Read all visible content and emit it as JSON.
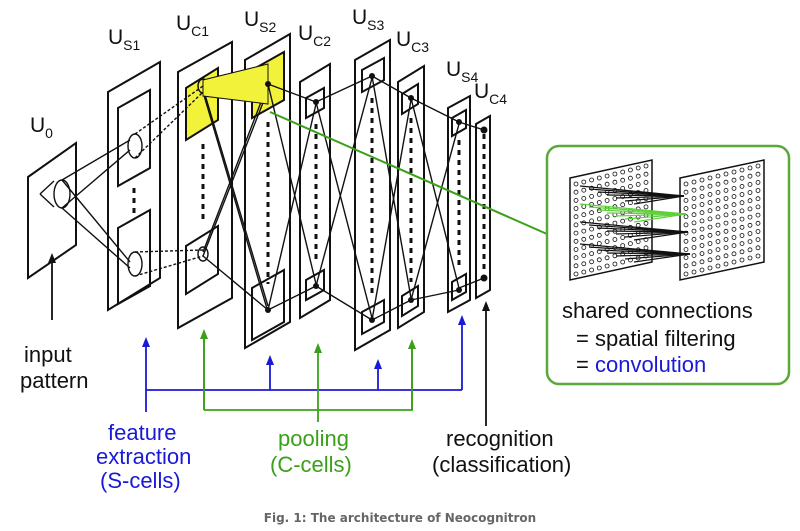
{
  "layers": [
    {
      "id": "U0",
      "main": "U",
      "sub": "0"
    },
    {
      "id": "US1",
      "main": "U",
      "sub": "S1"
    },
    {
      "id": "UC1",
      "main": "U",
      "sub": "C1"
    },
    {
      "id": "US2",
      "main": "U",
      "sub": "S2"
    },
    {
      "id": "UC2",
      "main": "U",
      "sub": "C2"
    },
    {
      "id": "US3",
      "main": "U",
      "sub": "S3"
    },
    {
      "id": "UC3",
      "main": "U",
      "sub": "C3"
    },
    {
      "id": "US4",
      "main": "U",
      "sub": "S4"
    },
    {
      "id": "UC4",
      "main": "U",
      "sub": "C4"
    }
  ],
  "labels": {
    "input": [
      "input",
      "pattern"
    ],
    "feature": [
      "feature",
      "extraction",
      "(S-cells)"
    ],
    "pooling": [
      "pooling",
      "(C-cells)"
    ],
    "recognition": [
      "recognition",
      "(classification)"
    ]
  },
  "inset": {
    "line1": "shared connections",
    "line2": "= spatial filtering",
    "line3_prefix": "= ",
    "line3_highlight": "convolution"
  },
  "caption": "Fig. 1: The architecture of Neocognitron",
  "colors": {
    "s_cells": "#1a1ad6",
    "c_cells": "#3aa01a",
    "highlight": "#f2f23a",
    "inset_border": "#5aa83a"
  }
}
